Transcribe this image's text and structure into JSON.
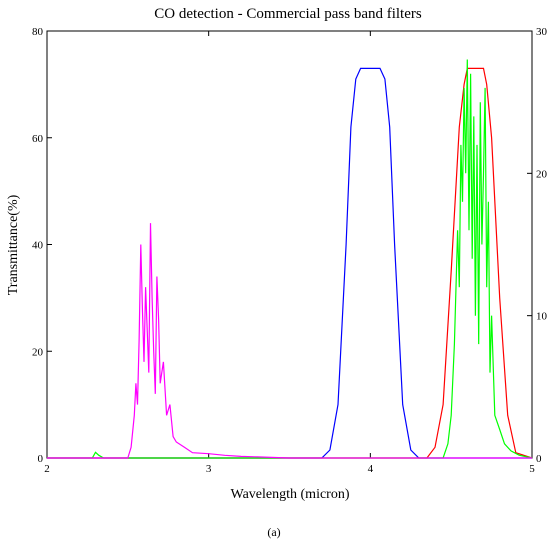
{
  "caption": "(a)",
  "chart_data": {
    "type": "line",
    "title": "CO detection - Commercial pass band filters",
    "xlabel": "Wavelength (micron)",
    "ylabel": "Transmittance(%)",
    "xlim": [
      2,
      5
    ],
    "ylim_left": [
      0,
      80
    ],
    "ylim_right": [
      0,
      30
    ],
    "x_ticks": [
      2,
      3,
      4,
      5
    ],
    "y_ticks_left": [
      0,
      20,
      40,
      60,
      80
    ],
    "y_ticks_right": [
      0,
      10,
      20,
      30
    ],
    "grid": false,
    "series": [
      {
        "color": "#0000ff",
        "axis": "left",
        "x": [
          2.0,
          3.7,
          3.75,
          3.8,
          3.85,
          3.88,
          3.91,
          3.94,
          4.06,
          4.09,
          4.12,
          4.15,
          4.2,
          4.25,
          4.3,
          5.0
        ],
        "values": [
          0,
          0,
          1.5,
          10,
          40,
          62,
          71,
          73,
          73,
          71,
          62,
          40,
          10,
          1.5,
          0,
          0
        ]
      },
      {
        "color": "#ff0000",
        "axis": "left",
        "x": [
          2.0,
          4.35,
          4.4,
          4.45,
          4.5,
          4.55,
          4.58,
          4.6,
          4.7,
          4.72,
          4.75,
          4.8,
          4.85,
          4.9,
          5.0
        ],
        "values": [
          0,
          0,
          2,
          10,
          35,
          62,
          70,
          73,
          73,
          70,
          60,
          30,
          8,
          1,
          0
        ]
      },
      {
        "color": "#00ff00",
        "axis": "right",
        "x": [
          2.0,
          2.28,
          2.3,
          2.32,
          2.35,
          4.45,
          4.48,
          4.5,
          4.52,
          4.54,
          4.55,
          4.56,
          4.57,
          4.58,
          4.59,
          4.6,
          4.61,
          4.62,
          4.63,
          4.64,
          4.65,
          4.66,
          4.67,
          4.68,
          4.69,
          4.7,
          4.71,
          4.72,
          4.73,
          4.74,
          4.75,
          4.77,
          4.8,
          4.83,
          4.87,
          4.92,
          5.0
        ],
        "values": [
          0,
          0,
          0.4,
          0.2,
          0,
          0,
          1,
          3,
          8,
          16,
          12,
          22,
          18,
          26,
          20,
          28,
          16,
          27,
          14,
          24,
          10,
          22,
          8,
          25,
          15,
          20,
          26,
          12,
          18,
          6,
          10,
          3,
          2,
          1,
          0.5,
          0.2,
          0
        ]
      },
      {
        "color": "#ff00ff",
        "axis": "left",
        "x": [
          2.0,
          2.5,
          2.52,
          2.54,
          2.55,
          2.56,
          2.57,
          2.58,
          2.59,
          2.6,
          2.61,
          2.62,
          2.63,
          2.64,
          2.65,
          2.66,
          2.67,
          2.68,
          2.69,
          2.7,
          2.72,
          2.74,
          2.76,
          2.78,
          2.8,
          2.85,
          2.9,
          3.0,
          3.1,
          3.2,
          3.3,
          3.5,
          5.0
        ],
        "values": [
          0,
          0,
          2,
          8,
          14,
          10,
          22,
          40,
          28,
          18,
          32,
          24,
          16,
          44,
          30,
          20,
          12,
          34,
          26,
          14,
          18,
          8,
          10,
          4,
          3,
          2,
          1,
          0.8,
          0.5,
          0.3,
          0.2,
          0,
          0
        ]
      }
    ]
  }
}
